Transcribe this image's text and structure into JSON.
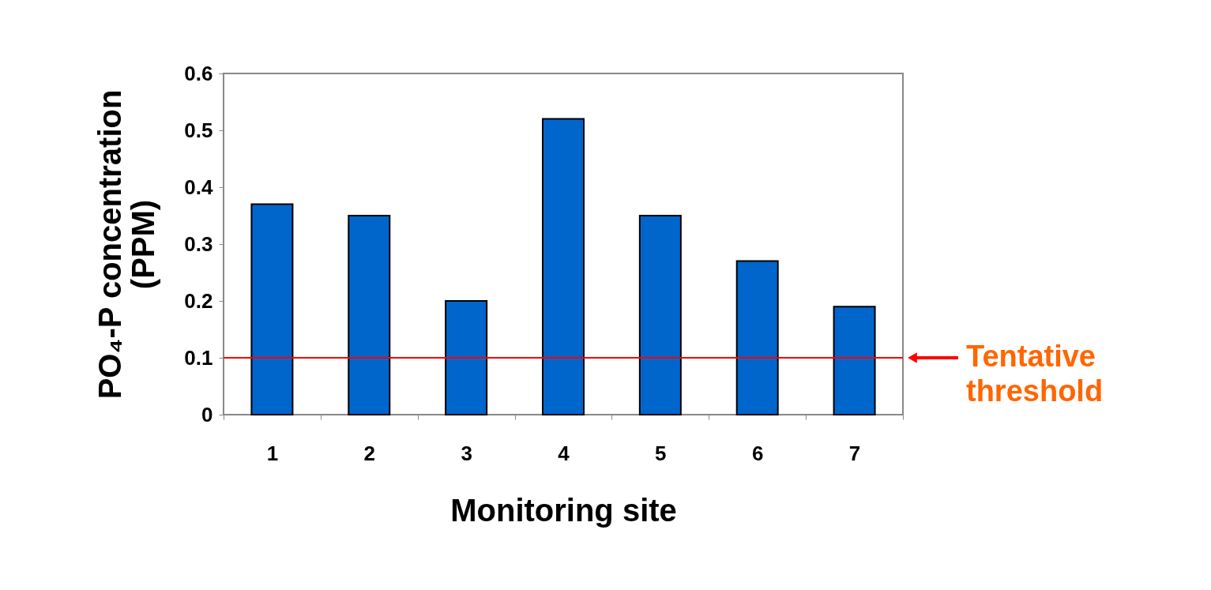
{
  "chart_data": {
    "type": "bar",
    "categories": [
      "1",
      "2",
      "3",
      "4",
      "5",
      "6",
      "7"
    ],
    "values": [
      0.37,
      0.35,
      0.2,
      0.52,
      0.35,
      0.27,
      0.19
    ],
    "color": "#0066cc",
    "xlabel": "Monitoring site",
    "ylabel": "PO₄-P concentration (PPM)",
    "ylim": [
      0,
      0.6
    ],
    "yticks": [
      0,
      0.1,
      0.2,
      0.3,
      0.4,
      0.5,
      0.6
    ],
    "grid": false,
    "ref_lines": [
      {
        "axis": "y",
        "value": 0.1,
        "label": "Tentative threshold",
        "color": "#ff0000"
      }
    ]
  }
}
